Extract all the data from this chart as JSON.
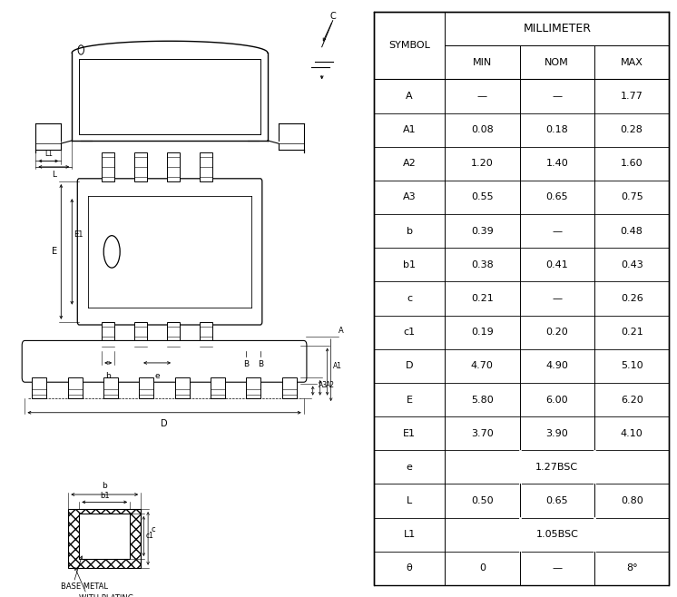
{
  "table": {
    "rows": [
      [
        "A",
        "—",
        "—",
        "1.77"
      ],
      [
        "A1",
        "0.08",
        "0.18",
        "0.28"
      ],
      [
        "A2",
        "1.20",
        "1.40",
        "1.60"
      ],
      [
        "A3",
        "0.55",
        "0.65",
        "0.75"
      ],
      [
        "b",
        "0.39",
        "—",
        "0.48"
      ],
      [
        "b1",
        "0.38",
        "0.41",
        "0.43"
      ],
      [
        "c",
        "0.21",
        "—",
        "0.26"
      ],
      [
        "c1",
        "0.19",
        "0.20",
        "0.21"
      ],
      [
        "D",
        "4.70",
        "4.90",
        "5.10"
      ],
      [
        "E",
        "5.80",
        "6.00",
        "6.20"
      ],
      [
        "E1",
        "3.70",
        "3.90",
        "4.10"
      ],
      [
        "e",
        "1.27BSC",
        null,
        null
      ],
      [
        "L",
        "0.50",
        "0.65",
        "0.80"
      ],
      [
        "L1",
        "1.05BSC",
        null,
        null
      ],
      [
        "θ",
        "0",
        "—",
        "8°"
      ]
    ]
  }
}
